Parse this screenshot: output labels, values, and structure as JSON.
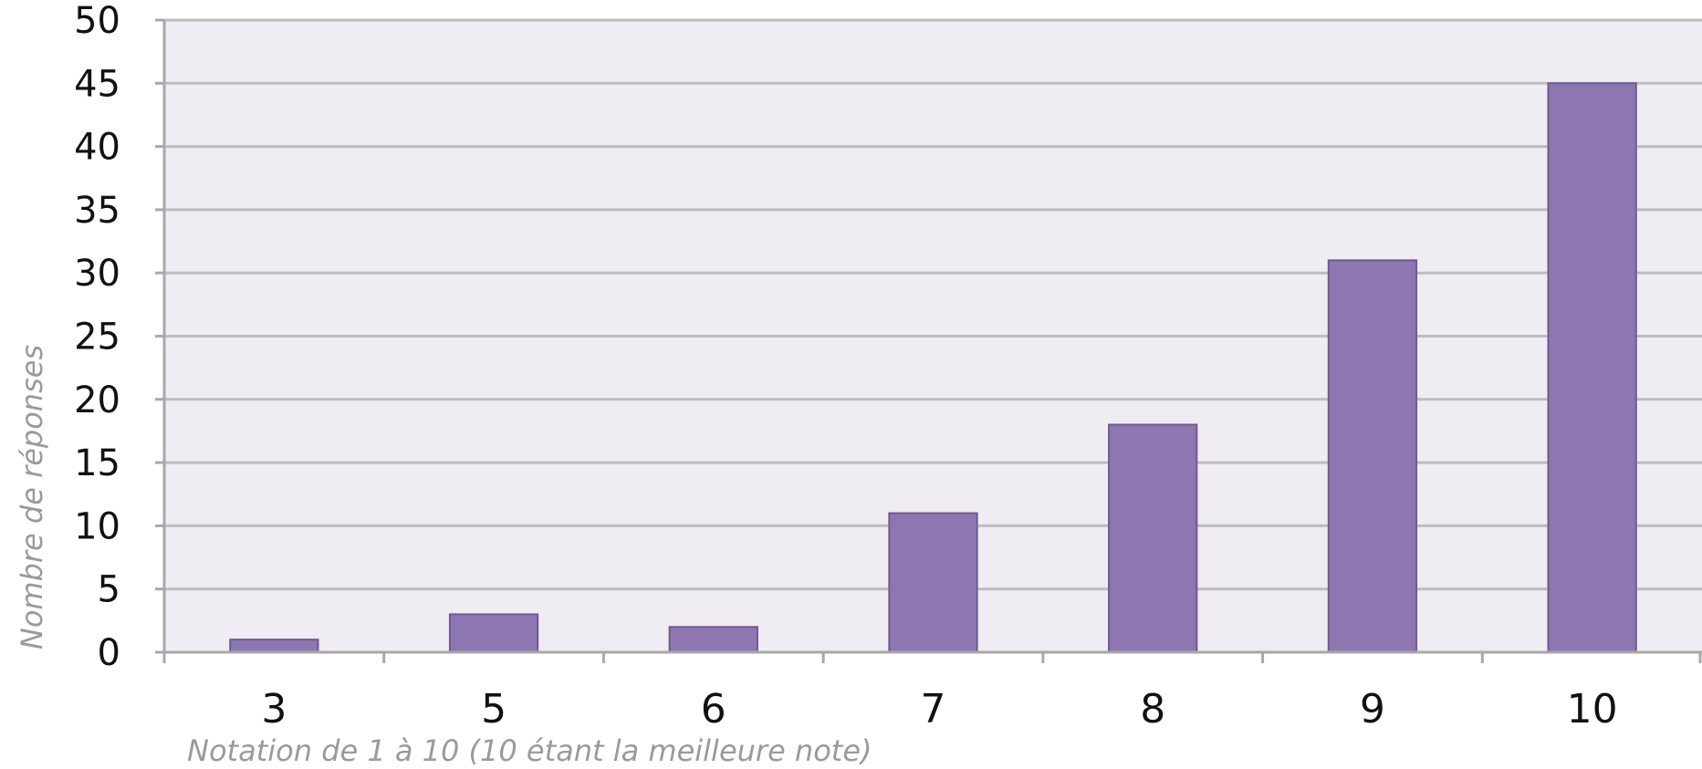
{
  "chart_data": {
    "type": "bar",
    "title": "",
    "xlabel": "Notation de 1 à 10 (10 étant la meilleure note)",
    "ylabel": "Nombre de réponses",
    "categories": [
      "3",
      "5",
      "6",
      "7",
      "8",
      "9",
      "10"
    ],
    "values": [
      1,
      3,
      2,
      11,
      18,
      31,
      45
    ],
    "ylim": [
      0,
      50
    ],
    "yticks": [
      0,
      5,
      10,
      15,
      20,
      25,
      30,
      35,
      40,
      45,
      50
    ],
    "grid": true,
    "legend": "none",
    "colors": {
      "bar": "#8E77B0",
      "bar_edge": "#6E5A92",
      "plot_background": "#EFEDF3",
      "gridline": "#BDBDBD"
    }
  }
}
